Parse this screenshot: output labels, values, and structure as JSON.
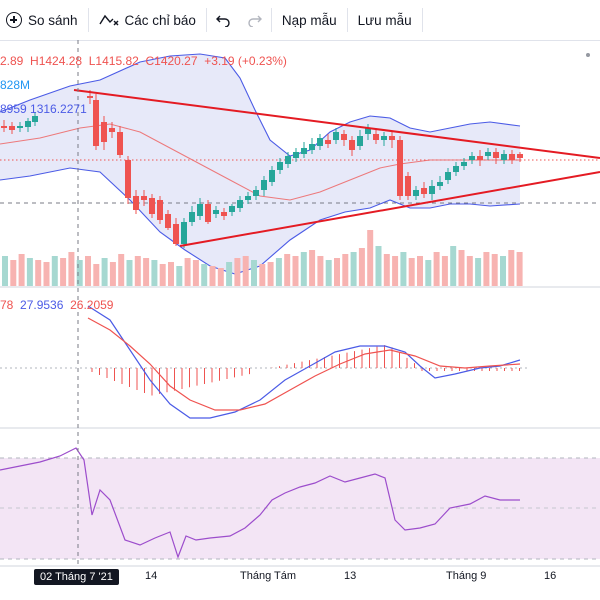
{
  "toolbar": {
    "compare_label": "So sánh",
    "indicators_label": "Các chỉ báo",
    "templates_label": "Nạp mẫu",
    "save_templates_label": "Lưu mẫu"
  },
  "legend": {
    "ohlc_open": "2.89",
    "ohlc_high": "H1424.28",
    "ohlc_low": "L1415.82",
    "ohlc_close": "C1420.27",
    "ohlc_change": "+3.19 (+0.23%)",
    "volume": "828M",
    "bb_values": "8959  1316.2271",
    "macd_a": "78",
    "macd_b": "27.9536",
    "macd_c": "26.2059"
  },
  "xaxis": {
    "selected_date": "02 Tháng 7 '21",
    "ticks": [
      "14",
      "Tháng Tám",
      "13",
      "Tháng 9",
      "16"
    ]
  },
  "colors": {
    "up": "#26a69a",
    "down": "#ef5350",
    "trendline": "#e41b23",
    "bollinger": "#4b5be6",
    "bollinger_fill": "#e3e5f8",
    "rsi_fill": "#f3e5f5",
    "rsi_line": "#9c4dcc"
  }
}
